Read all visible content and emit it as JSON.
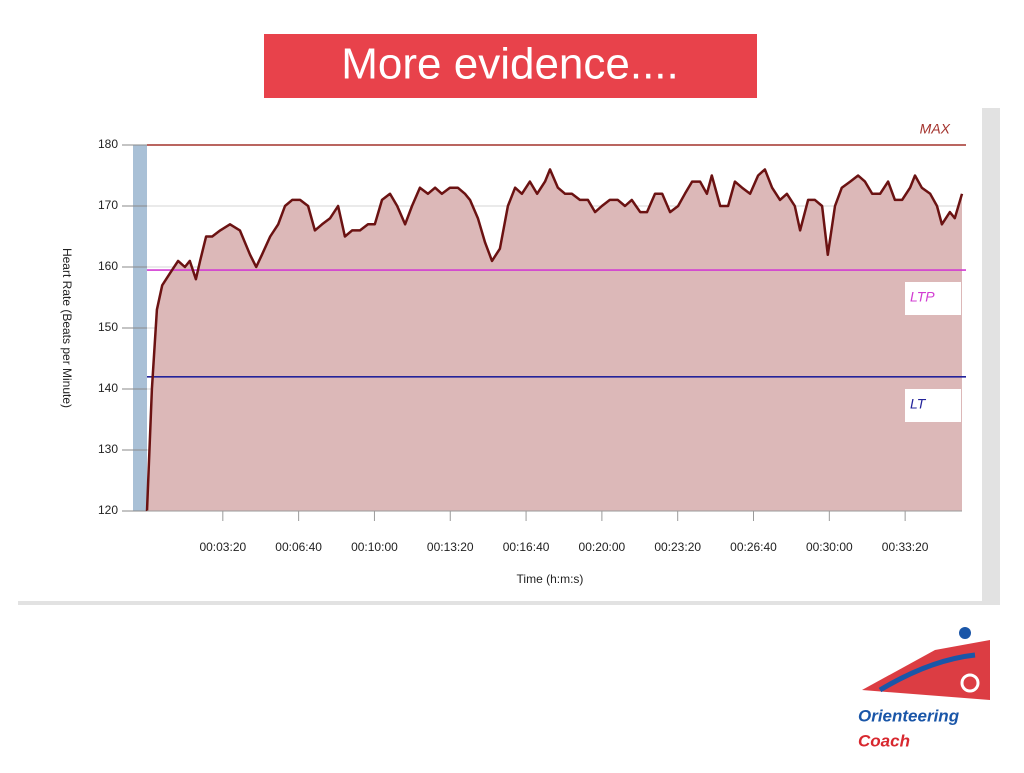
{
  "slide_title": "More evidence....",
  "logo": {
    "line1": "Orienteering",
    "line2": "Coach"
  },
  "chart_data": {
    "type": "area",
    "xlabel": "Time (h:m:s)",
    "ylabel": "Heart Rate (Beats per Minute)",
    "xlim": [
      0,
      2150
    ],
    "xticks": [
      {
        "value": 200,
        "label": "00:03:20"
      },
      {
        "value": 400,
        "label": "00:06:40"
      },
      {
        "value": 600,
        "label": "00:10:00"
      },
      {
        "value": 800,
        "label": "00:13:20"
      },
      {
        "value": 1000,
        "label": "00:16:40"
      },
      {
        "value": 1200,
        "label": "00:20:00"
      },
      {
        "value": 1400,
        "label": "00:23:20"
      },
      {
        "value": 1600,
        "label": "00:26:40"
      },
      {
        "value": 1800,
        "label": "00:30:00"
      },
      {
        "value": 2000,
        "label": "00:33:20"
      }
    ],
    "ylim": [
      120,
      180
    ],
    "yticks": [
      120,
      130,
      140,
      150,
      160,
      170,
      180
    ],
    "grid": true,
    "line_color": "#6b1212",
    "fill_color": "#dcb8b8",
    "x": [
      0,
      13,
      26,
      40,
      61,
      82,
      100,
      113,
      129,
      140,
      156,
      172,
      193,
      219,
      245,
      272,
      288,
      303,
      325,
      346,
      364,
      383,
      404,
      425,
      443,
      462,
      483,
      504,
      522,
      541,
      562,
      583,
      601,
      620,
      641,
      660,
      681,
      699,
      720,
      741,
      760,
      778,
      799,
      820,
      839,
      852,
      873,
      892,
      910,
      931,
      952,
      971,
      989,
      1010,
      1029,
      1050,
      1063,
      1084,
      1103,
      1121,
      1142,
      1163,
      1182,
      1200,
      1221,
      1242,
      1261,
      1279,
      1301,
      1319,
      1340,
      1359,
      1380,
      1401,
      1419,
      1438,
      1459,
      1477,
      1490,
      1512,
      1533,
      1551,
      1570,
      1591,
      1612,
      1630,
      1649,
      1670,
      1688,
      1709,
      1723,
      1744,
      1762,
      1781,
      1796,
      1815,
      1833,
      1855,
      1876,
      1894,
      1913,
      1934,
      1955,
      1973,
      1992,
      2013,
      2026,
      2044,
      2066,
      2084,
      2097,
      2118,
      2131,
      2150
    ],
    "values": [
      120,
      140,
      153,
      157,
      159,
      161,
      160,
      161,
      158,
      161,
      165,
      165,
      166,
      167,
      166,
      162,
      160,
      162,
      165,
      167,
      170,
      171,
      171,
      170,
      166,
      167,
      168,
      170,
      165,
      166,
      166,
      167,
      167,
      171,
      172,
      170,
      167,
      170,
      173,
      172,
      173,
      172,
      173,
      173,
      172,
      171,
      168,
      164,
      161,
      163,
      170,
      173,
      172,
      174,
      172,
      174,
      176,
      173,
      172,
      172,
      171,
      171,
      169,
      170,
      171,
      171,
      170,
      171,
      169,
      169,
      172,
      172,
      169,
      170,
      172,
      174,
      174,
      172,
      175,
      170,
      170,
      174,
      173,
      172,
      175,
      176,
      173,
      171,
      172,
      170,
      166,
      171,
      171,
      170,
      162,
      170,
      173,
      174,
      175,
      174,
      172,
      172,
      174,
      171,
      171,
      173,
      175,
      173,
      172,
      170,
      167,
      169,
      168,
      172
    ],
    "reference_lines": [
      {
        "label": "MAX",
        "value": 180,
        "color": "#a3322c"
      },
      {
        "label": "LTP",
        "value": 159.5,
        "color": "#d23cd2"
      },
      {
        "label": "LT",
        "value": 142,
        "color": "#23239a"
      }
    ]
  }
}
